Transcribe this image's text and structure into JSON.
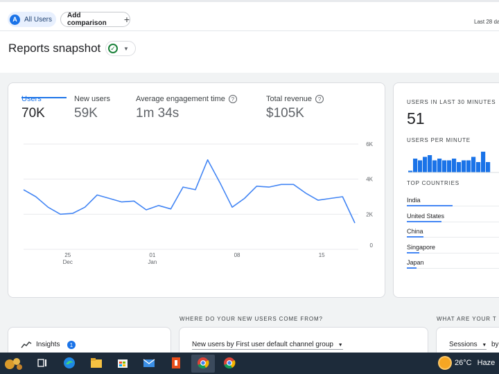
{
  "header": {
    "audience_chip": "All Users",
    "audience_avatar": "A",
    "add_comparison": "Add comparison",
    "add_icon": "plus-icon",
    "date_range": "Last 28 da"
  },
  "page": {
    "title": "Reports snapshot",
    "status_icon": "check-circle-icon"
  },
  "metrics": [
    {
      "label": "Users",
      "value": "70K",
      "active": true
    },
    {
      "label": "New users",
      "value": "59K"
    },
    {
      "label": "Average engagement time",
      "value": "1m 34s",
      "help": "?"
    },
    {
      "label": "Total revenue",
      "value": "$105K",
      "help": "?"
    }
  ],
  "chart_data": {
    "type": "line",
    "series": [
      {
        "values": [
          3400,
          3000,
          2400,
          2000,
          2050,
          2400,
          3100,
          2900,
          2700,
          2750,
          2250,
          2500,
          2300,
          3550,
          3400,
          5100,
          3800,
          2400,
          2900,
          3600,
          3550,
          3700,
          3700,
          3200,
          2800,
          2900,
          3000,
          1500
        ]
      }
    ],
    "x_ticks": [
      {
        "label": "25",
        "sub": "Dec",
        "index": 3.6
      },
      {
        "label": "01",
        "sub": "Jan",
        "index": 10.5
      },
      {
        "label": "08",
        "sub": "",
        "index": 17.4
      },
      {
        "label": "15",
        "sub": "",
        "index": 24.3
      }
    ],
    "y_ticks": [
      "6K",
      "4K",
      "2K",
      "0"
    ],
    "ylim": [
      0,
      6000
    ],
    "grid": true,
    "color": "#4285f4"
  },
  "realtime": {
    "users_label": "USERS IN LAST 30 MINUTES",
    "users_value": "51",
    "per_minute_label": "USERS PER MINUTE",
    "per_minute_values": [
      1,
      8,
      7,
      9,
      10,
      7,
      8,
      7,
      7,
      8,
      6,
      7,
      7,
      9,
      6,
      12,
      6
    ],
    "countries_label": "TOP COUNTRIES",
    "countries": [
      {
        "name": "India",
        "share": 0.41
      },
      {
        "name": "United States",
        "share": 0.31
      },
      {
        "name": "China",
        "share": 0.15
      },
      {
        "name": "Singapore",
        "share": 0.11
      },
      {
        "name": "Japan",
        "share": 0.09
      }
    ]
  },
  "bottom": {
    "new_users_title": "WHERE DO YOUR NEW USERS COME FROM?",
    "whats_your_title": "WHAT ARE YOUR T",
    "insights_label": "Insights",
    "insights_count": "1",
    "new_users_dropdown": "New users by First user default channel group",
    "sessions_dropdown": "Sessions",
    "by_text": "by"
  },
  "taskbar": {
    "temperature": "26°C",
    "weather": "Haze",
    "icons": [
      "widgets-icon",
      "task-view-icon",
      "edge-icon",
      "file-explorer-icon",
      "store-icon",
      "mail-icon",
      "office-icon",
      "chrome-icon",
      "chrome-icon"
    ]
  }
}
